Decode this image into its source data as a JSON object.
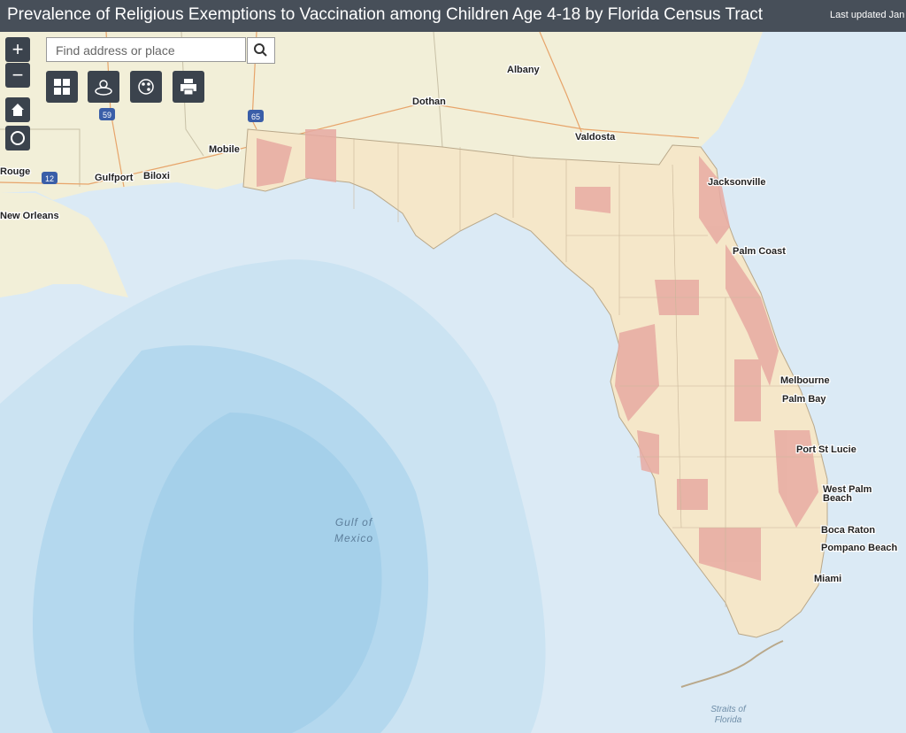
{
  "header": {
    "title": "Prevalence of Religious Exemptions to Vaccination among Children Age 4-18 by Florida Census Tract",
    "updated": "Last updated Jan"
  },
  "search": {
    "placeholder": "Find address or place"
  },
  "zoom": {
    "in": "+",
    "out": "−"
  },
  "map": {
    "cities": [
      "Albany",
      "Dothan",
      "Valdosta",
      "Mobile",
      "Rouge",
      "Gulfport",
      "Biloxi",
      "New Orleans",
      "Jacksonville",
      "Palm Coast",
      "Melbourne",
      "Palm Bay",
      "Port St Lucie",
      "West Palm",
      "Beach",
      "Boca Raton",
      "Pompano Beach",
      "Miami"
    ],
    "gulf": [
      "Gulf of",
      "Mexico"
    ],
    "straits": [
      "Straits of",
      "Florida"
    ],
    "shields": [
      "59",
      "12",
      "65"
    ]
  }
}
